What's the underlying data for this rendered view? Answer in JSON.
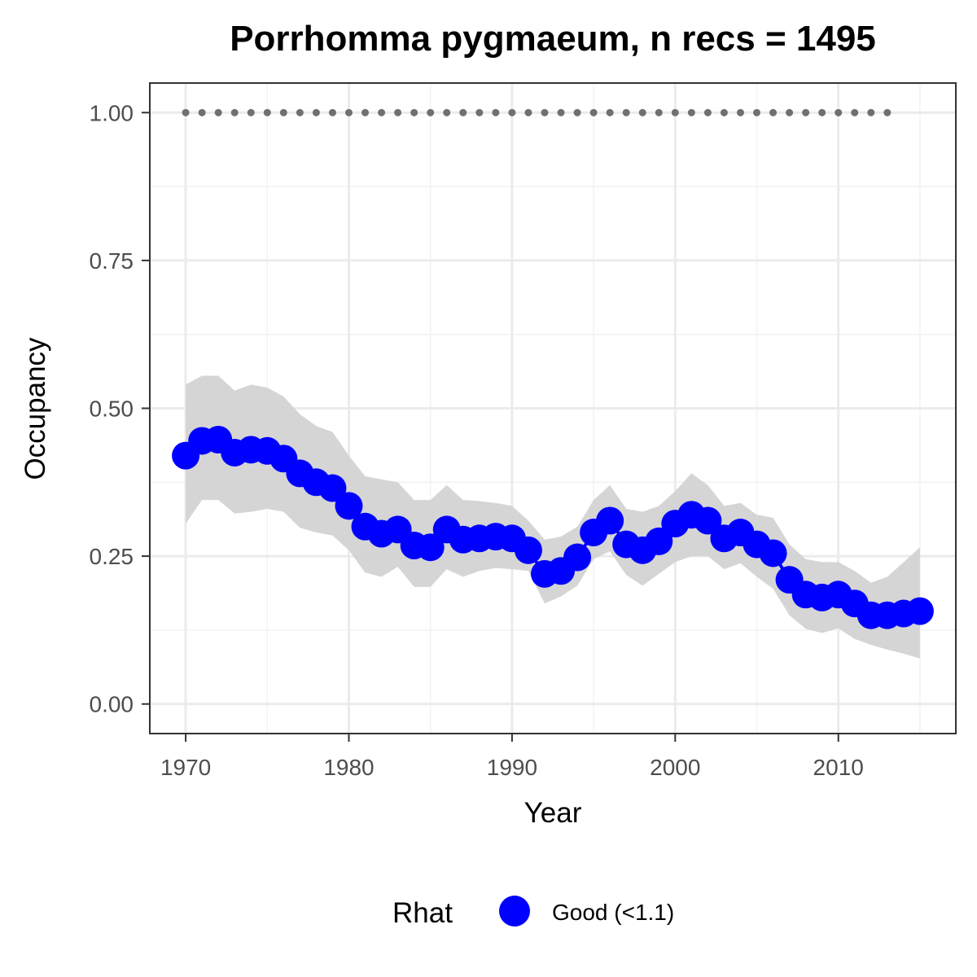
{
  "chart_data": {
    "type": "line",
    "title": "Porrhomma pygmaeum, n recs = 1495",
    "xlabel": "Year",
    "ylabel": "Occupancy",
    "xlim": [
      1967.8,
      1017.2
    ],
    "ylim": [
      -0.05,
      1.05
    ],
    "x_ticks": [
      1970,
      1980,
      1990,
      2000,
      2010
    ],
    "x_tick_labels": [
      "1970",
      "1980",
      "1990",
      "2000",
      "2010"
    ],
    "y_ticks": [
      0,
      0.25,
      0.5,
      0.75,
      1.0
    ],
    "y_tick_labels": [
      "0.00",
      "0.25",
      "0.50",
      "0.75",
      "1.00"
    ],
    "grid": true,
    "legend": {
      "title": "Rhat",
      "placement": "bottom",
      "entries": [
        {
          "label": "Good (<1.1)",
          "color": "#0000ff"
        }
      ]
    },
    "colors": {
      "series": "#0000ff",
      "ribbon": "#d3d3d3",
      "record_dots": "#707070"
    },
    "series": [
      {
        "name": "Good (<1.1)",
        "x": [
          1970,
          1971,
          1972,
          1973,
          1974,
          1975,
          1976,
          1977,
          1978,
          1979,
          1980,
          1981,
          1982,
          1983,
          1984,
          1985,
          1986,
          1987,
          1988,
          1989,
          1990,
          1991,
          1992,
          1993,
          1994,
          1995,
          1996,
          1997,
          1998,
          1999,
          2000,
          2001,
          2002,
          2003,
          2004,
          2005,
          2006,
          2007,
          2008,
          2009,
          2010,
          2011,
          2012,
          2013,
          2014,
          2015
        ],
        "y": [
          0.42,
          0.445,
          0.447,
          0.425,
          0.43,
          0.428,
          0.415,
          0.39,
          0.375,
          0.365,
          0.335,
          0.3,
          0.288,
          0.295,
          0.268,
          0.265,
          0.295,
          0.278,
          0.28,
          0.283,
          0.28,
          0.26,
          0.22,
          0.225,
          0.248,
          0.29,
          0.31,
          0.27,
          0.26,
          0.275,
          0.305,
          0.32,
          0.31,
          0.28,
          0.29,
          0.27,
          0.255,
          0.21,
          0.185,
          0.18,
          0.185,
          0.17,
          0.15,
          0.15,
          0.153,
          0.157
        ],
        "lower": [
          0.305,
          0.345,
          0.345,
          0.322,
          0.325,
          0.33,
          0.325,
          0.298,
          0.29,
          0.285,
          0.26,
          0.222,
          0.215,
          0.232,
          0.198,
          0.198,
          0.228,
          0.215,
          0.225,
          0.23,
          0.228,
          0.225,
          0.17,
          0.182,
          0.2,
          0.245,
          0.258,
          0.218,
          0.2,
          0.22,
          0.24,
          0.25,
          0.25,
          0.228,
          0.238,
          0.215,
          0.195,
          0.15,
          0.127,
          0.12,
          0.128,
          0.11,
          0.1,
          0.092,
          0.085,
          0.077
        ],
        "upper": [
          0.54,
          0.555,
          0.555,
          0.53,
          0.54,
          0.535,
          0.52,
          0.49,
          0.47,
          0.46,
          0.42,
          0.385,
          0.38,
          0.375,
          0.345,
          0.345,
          0.37,
          0.345,
          0.343,
          0.34,
          0.335,
          0.31,
          0.278,
          0.283,
          0.3,
          0.345,
          0.37,
          0.33,
          0.325,
          0.335,
          0.36,
          0.39,
          0.37,
          0.335,
          0.34,
          0.32,
          0.315,
          0.27,
          0.245,
          0.24,
          0.24,
          0.225,
          0.205,
          0.215,
          0.24,
          0.265
        ]
      }
    ],
    "records": {
      "x": [
        1970,
        1971,
        1972,
        1973,
        1974,
        1975,
        1976,
        1977,
        1978,
        1979,
        1980,
        1981,
        1982,
        1983,
        1984,
        1985,
        1986,
        1987,
        1988,
        1989,
        1990,
        1991,
        1992,
        1993,
        1994,
        1995,
        1996,
        1997,
        1998,
        1999,
        2000,
        2001,
        2002,
        2003,
        2004,
        2005,
        2006,
        2007,
        2008,
        2009,
        2010,
        2011,
        2012,
        2013
      ],
      "y": 1.0
    }
  }
}
